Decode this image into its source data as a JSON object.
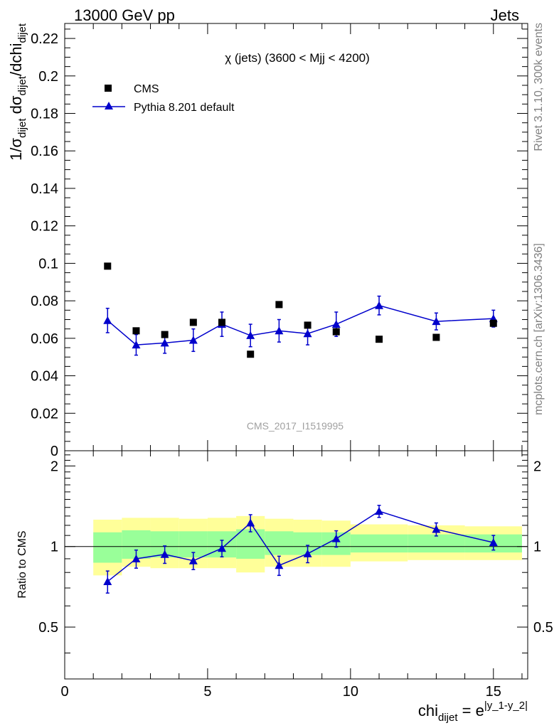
{
  "header": {
    "energy_label": "13000 GeV pp",
    "process_label": "Jets"
  },
  "side_labels": {
    "rivet_version": "Rivet 3.1.10,  300k events",
    "source_url": "mcplots.cern.ch [arXiv:1306.3436]"
  },
  "colors": {
    "mc_line": "#0000cc",
    "band_inner": "#99ff99",
    "band_outer": "#ffff99",
    "data_marker": "#000000"
  },
  "chart_data": [
    {
      "type": "scatter",
      "panel": "main",
      "title": "χ (jets) (3600 < Mjj < 4200)",
      "analysis_tag": "CMS_2017_I1519995",
      "ylabel": "1/σ_dijet dσ_dijet/dchi_dijet",
      "xlim": [
        0,
        16.2
      ],
      "ylim": [
        0,
        0.228
      ],
      "y_ticks": [
        0,
        0.02,
        0.04,
        0.06,
        0.08,
        0.1,
        0.12,
        0.14,
        0.16,
        0.18,
        0.2,
        0.22
      ],
      "y_tick_labels": [
        "0",
        "0.02",
        "0.04",
        "0.06",
        "0.08",
        "0.1",
        "0.12",
        "0.14",
        "0.16",
        "0.18",
        "0.2",
        "0.22"
      ],
      "legend": {
        "position": "top-left",
        "entries": [
          "CMS",
          "Pythia 8.201 default"
        ]
      },
      "series": [
        {
          "name": "CMS",
          "marker": "square",
          "x": [
            1.5,
            2.5,
            3.5,
            4.5,
            5.5,
            6.5,
            7.5,
            8.5,
            9.5,
            11,
            13,
            15
          ],
          "values": [
            0.0985,
            0.064,
            0.062,
            0.0685,
            0.0685,
            0.0515,
            0.078,
            0.067,
            0.0635,
            0.0595,
            0.0605,
            0.068
          ]
        },
        {
          "name": "Pythia 8.201 default",
          "marker": "triangle",
          "x": [
            1.5,
            2.5,
            3.5,
            4.5,
            5.5,
            6.5,
            7.5,
            8.5,
            9.5,
            11,
            13,
            15
          ],
          "values": [
            0.0695,
            0.0565,
            0.0575,
            0.059,
            0.0675,
            0.0615,
            0.064,
            0.0625,
            0.0675,
            0.0775,
            0.069,
            0.0705
          ],
          "errors": [
            0.0065,
            0.0055,
            0.0055,
            0.006,
            0.0065,
            0.006,
            0.006,
            0.006,
            0.0065,
            0.005,
            0.0045,
            0.0045
          ]
        }
      ]
    },
    {
      "type": "line",
      "panel": "ratio",
      "ylabel": "Ratio to CMS",
      "xlabel": "chi_dijet = e^|y_1-y_2|",
      "xlim": [
        0,
        16.2
      ],
      "ylim": [
        0.32,
        2.28
      ],
      "x_ticks": [
        0,
        5,
        10,
        15
      ],
      "x_tick_labels": [
        "0",
        "5",
        "10",
        "15"
      ],
      "y_ticks": [
        0.5,
        1,
        2
      ],
      "y_tick_labels": [
        "0.5",
        "1",
        "2"
      ],
      "bands": {
        "bin_edges": [
          1,
          2,
          3,
          4,
          5,
          6,
          7,
          8,
          9,
          10,
          12,
          14,
          16
        ],
        "inner_low": [
          0.87,
          0.9,
          0.91,
          0.91,
          0.91,
          0.9,
          0.93,
          0.93,
          0.93,
          0.95,
          0.95,
          0.95
        ],
        "inner_high": [
          1.13,
          1.15,
          1.14,
          1.14,
          1.14,
          1.16,
          1.14,
          1.13,
          1.13,
          1.11,
          1.11,
          1.11
        ],
        "outer_low": [
          0.78,
          0.84,
          0.83,
          0.83,
          0.83,
          0.8,
          0.84,
          0.84,
          0.84,
          0.88,
          0.89,
          0.89
        ],
        "outer_high": [
          1.26,
          1.28,
          1.28,
          1.27,
          1.28,
          1.3,
          1.27,
          1.26,
          1.25,
          1.21,
          1.2,
          1.19
        ]
      },
      "series": [
        {
          "name": "Pythia 8.201 default",
          "x": [
            1.5,
            2.5,
            3.5,
            4.5,
            5.5,
            6.5,
            7.5,
            8.5,
            9.5,
            11,
            13,
            15
          ],
          "values": [
            0.74,
            0.9,
            0.935,
            0.885,
            0.985,
            1.225,
            0.85,
            0.94,
            1.07,
            1.355,
            1.16,
            1.035
          ],
          "errors": [
            0.07,
            0.07,
            0.07,
            0.065,
            0.07,
            0.09,
            0.07,
            0.07,
            0.075,
            0.07,
            0.065,
            0.065
          ]
        }
      ]
    }
  ]
}
